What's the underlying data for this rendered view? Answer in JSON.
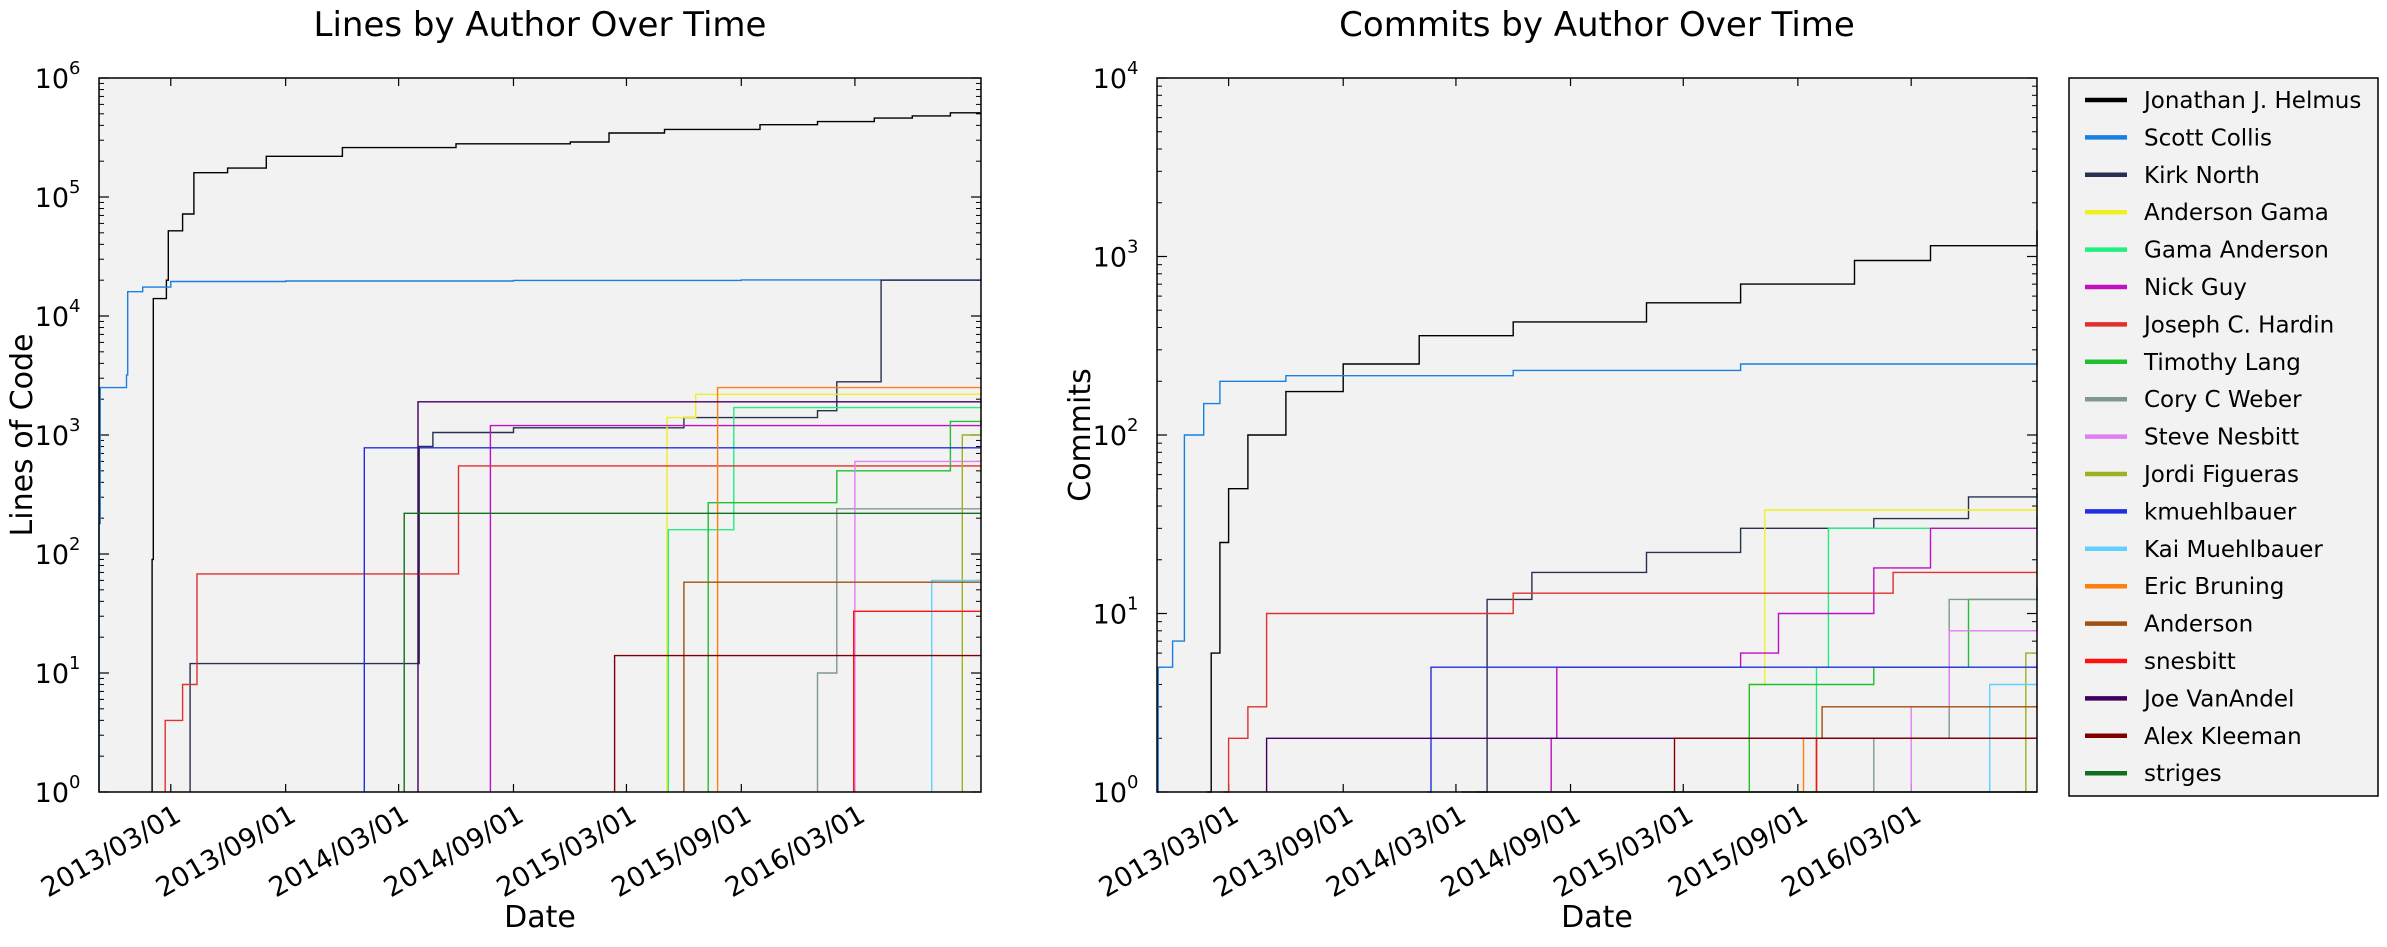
{
  "authors": [
    {
      "name": "Jonathan J. Helmus",
      "color": "#000000"
    },
    {
      "name": "Scott Collis",
      "color": "#1a7fe0"
    },
    {
      "name": "Kirk North",
      "color": "#283050"
    },
    {
      "name": "Anderson Gama",
      "color": "#f0f020"
    },
    {
      "name": "Gama Anderson",
      "color": "#20f080"
    },
    {
      "name": "Nick Guy",
      "color": "#c010c0"
    },
    {
      "name": "Joseph C. Hardin",
      "color": "#e03030"
    },
    {
      "name": "Timothy Lang",
      "color": "#20c030"
    },
    {
      "name": "Cory C Weber",
      "color": "#809890"
    },
    {
      "name": "Steve Nesbitt",
      "color": "#e080f0"
    },
    {
      "name": "Jordi Figueras",
      "color": "#a0b020"
    },
    {
      "name": "kmuehlbauer",
      "color": "#2030e0"
    },
    {
      "name": "Kai Muehlbauer",
      "color": "#60d0ff"
    },
    {
      "name": "Eric Bruning",
      "color": "#ff8010"
    },
    {
      "name": "Anderson",
      "color": "#a05010"
    },
    {
      "name": "snesbitt",
      "color": "#ff1010"
    },
    {
      "name": "Joe VanAndel",
      "color": "#400060"
    },
    {
      "name": "Alex Kleeman",
      "color": "#800000"
    },
    {
      "name": "striges",
      "color": "#107020"
    }
  ],
  "chart_data": [
    {
      "type": "line",
      "title": "Lines by Author Over Time",
      "xlabel": "Date",
      "ylabel": "Lines of Code",
      "yscale": "log",
      "ylim": [
        1,
        1000000
      ],
      "xlim": [
        "2012-11-06",
        "2016-09-19"
      ],
      "xticks": [
        "2013/03/01",
        "2013/09/01",
        "2014/03/01",
        "2014/09/01",
        "2015/03/01",
        "2015/09/01",
        "2016/03/01"
      ],
      "yticks": [
        "10^0",
        "10^1",
        "10^2",
        "10^3",
        "10^4",
        "10^5",
        "10^6"
      ],
      "background": "#f2f2f2",
      "series": [
        {
          "name": "Jonathan J. Helmus",
          "points": [
            [
              "2013-01-30",
              90
            ],
            [
              "2013-02-01",
              14000
            ],
            [
              "2013-02-22",
              20000
            ],
            [
              "2013-02-25",
              52000
            ],
            [
              "2013-03-20",
              72000
            ],
            [
              "2013-04-07",
              160000
            ],
            [
              "2013-05-31",
              175000
            ],
            [
              "2013-08-01",
              220000
            ],
            [
              "2013-12-01",
              260000
            ],
            [
              "2014-06-01",
              280000
            ],
            [
              "2014-12-01",
              290000
            ],
            [
              "2015-02-01",
              345000
            ],
            [
              "2015-05-01",
              370000
            ],
            [
              "2015-10-01",
              405000
            ],
            [
              "2016-01-01",
              430000
            ],
            [
              "2016-04-01",
              460000
            ],
            [
              "2016-06-01",
              480000
            ],
            [
              "2016-08-01",
              510000
            ],
            [
              "2016-09-19",
              510000
            ]
          ]
        },
        {
          "name": "Scott Collis",
          "points": [
            [
              "2012-11-06",
              180
            ],
            [
              "2012-11-08",
              2500
            ],
            [
              "2012-12-20",
              3200
            ],
            [
              "2012-12-22",
              16000
            ],
            [
              "2013-01-15",
              17500
            ],
            [
              "2013-03-01",
              19500
            ],
            [
              "2013-09-01",
              19700
            ],
            [
              "2014-09-01",
              19900
            ],
            [
              "2015-09-01",
              20100
            ],
            [
              "2016-09-19",
              20200
            ]
          ]
        },
        {
          "name": "Kirk North",
          "points": [
            [
              "2013-04-01",
              12
            ],
            [
              "2014-04-01",
              12
            ],
            [
              "2014-04-03",
              800
            ],
            [
              "2014-04-25",
              1050
            ],
            [
              "2014-09-01",
              1150
            ],
            [
              "2015-06-01",
              1400
            ],
            [
              "2016-01-01",
              1600
            ],
            [
              "2016-02-01",
              2800
            ],
            [
              "2016-04-12",
              20000
            ],
            [
              "2016-09-19",
              20000
            ]
          ]
        },
        {
          "name": "Anderson Gama",
          "points": [
            [
              "2015-05-05",
              1400
            ],
            [
              "2015-06-20",
              2200
            ],
            [
              "2016-09-19",
              2300
            ]
          ]
        },
        {
          "name": "Gama Anderson",
          "points": [
            [
              "2015-05-07",
              160
            ],
            [
              "2015-08-20",
              1700
            ],
            [
              "2016-09-19",
              1800
            ]
          ]
        },
        {
          "name": "Nick Guy",
          "points": [
            [
              "2014-07-26",
              1200
            ],
            [
              "2016-09-19",
              1350
            ]
          ]
        },
        {
          "name": "Joseph C. Hardin",
          "points": [
            [
              "2013-02-20",
              4
            ],
            [
              "2013-03-20",
              8
            ],
            [
              "2013-04-12",
              68
            ],
            [
              "2014-05-10",
              68
            ],
            [
              "2014-06-05",
              550
            ],
            [
              "2016-09-19",
              550
            ]
          ]
        },
        {
          "name": "Timothy Lang",
          "points": [
            [
              "2015-07-10",
              270
            ],
            [
              "2016-02-01",
              500
            ],
            [
              "2016-08-01",
              1300
            ],
            [
              "2016-09-19",
              1300
            ]
          ]
        },
        {
          "name": "Cory C Weber",
          "points": [
            [
              "2016-01-01",
              10
            ],
            [
              "2016-02-01",
              240
            ],
            [
              "2016-09-19",
              280
            ]
          ]
        },
        {
          "name": "Steve Nesbitt",
          "points": [
            [
              "2016-03-01",
              600
            ],
            [
              "2016-09-19",
              620
            ]
          ]
        },
        {
          "name": "Jordi Figueras",
          "points": [
            [
              "2016-08-20",
              1000
            ],
            [
              "2016-09-19",
              1100
            ]
          ]
        },
        {
          "name": "kmuehlbauer",
          "points": [
            [
              "2014-01-05",
              780
            ],
            [
              "2016-09-19",
              780
            ]
          ]
        },
        {
          "name": "Kai Muehlbauer",
          "points": [
            [
              "2016-07-02",
              60
            ],
            [
              "2016-09-19",
              60
            ]
          ]
        },
        {
          "name": "Eric Bruning",
          "points": [
            [
              "2015-07-25",
              2500
            ],
            [
              "2016-09-19",
              2500
            ]
          ]
        },
        {
          "name": "Anderson",
          "points": [
            [
              "2015-06-01",
              58
            ],
            [
              "2016-09-19",
              58
            ]
          ]
        },
        {
          "name": "snesbitt",
          "points": [
            [
              "2016-02-28",
              33
            ],
            [
              "2016-09-19",
              33
            ]
          ]
        },
        {
          "name": "Joe VanAndel",
          "points": [
            [
              "2014-04-01",
              1900
            ],
            [
              "2016-09-19",
              1950
            ]
          ]
        },
        {
          "name": "Alex Kleeman",
          "points": [
            [
              "2015-02-10",
              14
            ],
            [
              "2016-09-19",
              14
            ]
          ]
        },
        {
          "name": "striges",
          "points": [
            [
              "2014-03-10",
              220
            ],
            [
              "2016-09-19",
              220
            ]
          ]
        }
      ]
    },
    {
      "type": "line",
      "title": "Commits by Author Over Time",
      "xlabel": "Date",
      "ylabel": "Commits",
      "yscale": "log",
      "ylim": [
        1,
        10000
      ],
      "xlim": [
        "2012-11-06",
        "2016-09-19"
      ],
      "xticks": [
        "2013/03/01",
        "2013/09/01",
        "2014/03/01",
        "2014/09/01",
        "2015/03/01",
        "2015/09/01",
        "2016/03/01"
      ],
      "yticks": [
        "10^0",
        "10^1",
        "10^2",
        "10^3",
        "10^4"
      ],
      "background": "#f2f2f2",
      "series": [
        {
          "name": "Jonathan J. Helmus",
          "points": [
            [
              "2013-01-25",
              1
            ],
            [
              "2013-02-01",
              6
            ],
            [
              "2013-02-15",
              25
            ],
            [
              "2013-03-01",
              50
            ],
            [
              "2013-04-01",
              100
            ],
            [
              "2013-06-01",
              175
            ],
            [
              "2013-09-01",
              250
            ],
            [
              "2014-01-01",
              360
            ],
            [
              "2014-06-01",
              430
            ],
            [
              "2015-01-01",
              550
            ],
            [
              "2015-06-01",
              700
            ],
            [
              "2015-12-01",
              950
            ],
            [
              "2016-04-01",
              1150
            ],
            [
              "2016-09-19",
              1400
            ]
          ]
        },
        {
          "name": "Scott Collis",
          "points": [
            [
              "2012-11-06",
              1
            ],
            [
              "2012-11-08",
              5
            ],
            [
              "2012-12-01",
              7
            ],
            [
              "2012-12-20",
              100
            ],
            [
              "2013-01-20",
              150
            ],
            [
              "2013-02-15",
              200
            ],
            [
              "2013-06-01",
              215
            ],
            [
              "2014-06-01",
              230
            ],
            [
              "2015-06-01",
              250
            ],
            [
              "2016-09-19",
              265
            ]
          ]
        },
        {
          "name": "Kirk North",
          "points": [
            [
              "2014-04-05",
              1
            ],
            [
              "2014-04-20",
              12
            ],
            [
              "2014-07-01",
              17
            ],
            [
              "2015-01-01",
              22
            ],
            [
              "2015-06-01",
              30
            ],
            [
              "2016-01-01",
              34
            ],
            [
              "2016-06-01",
              45
            ],
            [
              "2016-09-19",
              47
            ]
          ]
        },
        {
          "name": "Anderson Gama",
          "points": [
            [
              "2015-06-15",
              4
            ],
            [
              "2015-07-10",
              38
            ],
            [
              "2016-09-19",
              42
            ]
          ]
        },
        {
          "name": "Gama Anderson",
          "points": [
            [
              "2015-10-01",
              5
            ],
            [
              "2015-10-20",
              30
            ],
            [
              "2016-09-19",
              36
            ]
          ]
        },
        {
          "name": "Nick Guy",
          "points": [
            [
              "2014-08-01",
              2
            ],
            [
              "2014-08-10",
              5
            ],
            [
              "2015-06-01",
              6
            ],
            [
              "2015-08-01",
              10
            ],
            [
              "2016-01-01",
              18
            ],
            [
              "2016-04-01",
              30
            ],
            [
              "2016-09-19",
              30
            ]
          ]
        },
        {
          "name": "Joseph C. Hardin",
          "points": [
            [
              "2013-02-20",
              1
            ],
            [
              "2013-03-01",
              2
            ],
            [
              "2013-04-01",
              3
            ],
            [
              "2013-05-01",
              10
            ],
            [
              "2014-05-01",
              10
            ],
            [
              "2014-06-01",
              13
            ],
            [
              "2015-12-01",
              13
            ],
            [
              "2016-02-01",
              17
            ],
            [
              "2016-09-19",
              17
            ]
          ]
        },
        {
          "name": "Timothy Lang",
          "points": [
            [
              "2015-06-15",
              4
            ],
            [
              "2016-01-01",
              5
            ],
            [
              "2016-06-01",
              12
            ],
            [
              "2016-09-19",
              14
            ]
          ]
        },
        {
          "name": "Cory C Weber",
          "points": [
            [
              "2016-01-01",
              2
            ],
            [
              "2016-05-01",
              12
            ],
            [
              "2016-09-19",
              12
            ]
          ]
        },
        {
          "name": "Steve Nesbitt",
          "points": [
            [
              "2016-03-01",
              3
            ],
            [
              "2016-05-01",
              8
            ],
            [
              "2016-09-19",
              9
            ]
          ]
        },
        {
          "name": "Jordi Figueras",
          "points": [
            [
              "2016-08-20",
              1
            ],
            [
              "2016-09-01",
              6
            ],
            [
              "2016-09-19",
              6
            ]
          ]
        },
        {
          "name": "kmuehlbauer",
          "points": [
            [
              "2014-01-15",
              1
            ],
            [
              "2014-01-20",
              5
            ],
            [
              "2016-09-19",
              5
            ]
          ]
        },
        {
          "name": "Kai Muehlbauer",
          "points": [
            [
              "2016-07-01",
              1
            ],
            [
              "2016-07-05",
              4
            ],
            [
              "2016-09-19",
              4
            ]
          ]
        },
        {
          "name": "Eric Bruning",
          "points": [
            [
              "2015-09-05",
              1
            ],
            [
              "2015-09-10",
              2
            ],
            [
              "2016-09-19",
              2
            ]
          ]
        },
        {
          "name": "Anderson",
          "points": [
            [
              "2015-10-01",
              2
            ],
            [
              "2015-10-10",
              3
            ],
            [
              "2016-09-19",
              3
            ]
          ]
        },
        {
          "name": "snesbitt",
          "points": [
            [
              "2015-10-01",
              2
            ],
            [
              "2016-09-19",
              2
            ]
          ]
        },
        {
          "name": "Joe VanAndel",
          "points": [
            [
              "2013-05-01",
              2
            ],
            [
              "2016-09-19",
              2
            ]
          ]
        },
        {
          "name": "Alex Kleeman",
          "points": [
            [
              "2015-02-10",
              1
            ],
            [
              "2015-02-15",
              2
            ],
            [
              "2016-09-19",
              2
            ]
          ]
        },
        {
          "name": "striges",
          "points": [
            [
              "2014-03-10",
              1
            ],
            [
              "2016-09-19",
              1
            ]
          ]
        }
      ]
    }
  ]
}
